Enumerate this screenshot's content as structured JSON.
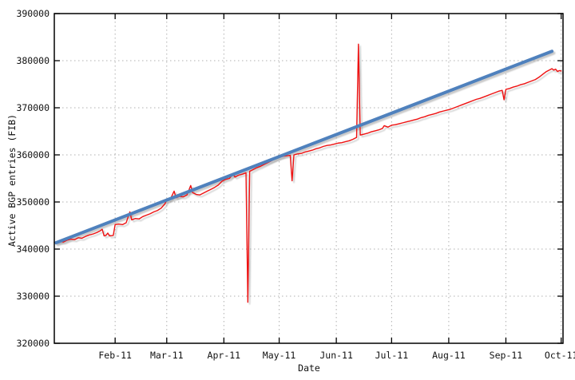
{
  "chart_data": {
    "type": "line",
    "title": "",
    "xlabel": "Date",
    "ylabel": "Active BGP entries (FIB)",
    "x_range": [
      "2010-12-30",
      "2011-10-02"
    ],
    "y_range": [
      320000,
      390000
    ],
    "y_ticks": [
      320000,
      330000,
      340000,
      350000,
      360000,
      370000,
      380000,
      390000
    ],
    "x_ticks": [
      {
        "date": "2011-02-01",
        "label": "Feb-11"
      },
      {
        "date": "2011-03-01",
        "label": "Mar-11"
      },
      {
        "date": "2011-04-01",
        "label": "Apr-11"
      },
      {
        "date": "2011-05-01",
        "label": "May-11"
      },
      {
        "date": "2011-06-01",
        "label": "Jun-11"
      },
      {
        "date": "2011-07-01",
        "label": "Jul-11"
      },
      {
        "date": "2011-08-01",
        "label": "Aug-11"
      },
      {
        "date": "2011-09-01",
        "label": "Sep-11"
      },
      {
        "date": "2011-10-01",
        "label": "Oct-11"
      }
    ],
    "grid": true,
    "legend": "none",
    "colors": {
      "fib": "#ee1111",
      "trend": "#4f81bd",
      "grid": "#b0b0b0",
      "border": "#000000",
      "text": "#111111",
      "shadow": "#8a8a8a"
    },
    "series": [
      {
        "name": "Active BGP entries (FIB)",
        "role": "measurement",
        "color_key": "fib",
        "width": 1.4,
        "points": [
          [
            "2010-12-30",
            341450
          ],
          [
            "2011-01-02",
            341600
          ],
          [
            "2011-01-04",
            341500
          ],
          [
            "2011-01-06",
            341900
          ],
          [
            "2011-01-08",
            342100
          ],
          [
            "2011-01-10",
            342000
          ],
          [
            "2011-01-12",
            342400
          ],
          [
            "2011-01-14",
            342300
          ],
          [
            "2011-01-16",
            342700
          ],
          [
            "2011-01-18",
            343000
          ],
          [
            "2011-01-20",
            343200
          ],
          [
            "2011-01-22",
            343500
          ],
          [
            "2011-01-24",
            343900
          ],
          [
            "2011-01-25",
            344200
          ],
          [
            "2011-01-26",
            342800
          ],
          [
            "2011-01-27",
            342900
          ],
          [
            "2011-01-28",
            343400
          ],
          [
            "2011-01-29",
            342800
          ],
          [
            "2011-01-31",
            342900
          ],
          [
            "2011-02-01",
            345200
          ],
          [
            "2011-02-03",
            345300
          ],
          [
            "2011-02-05",
            345200
          ],
          [
            "2011-02-07",
            345600
          ],
          [
            "2011-02-09",
            347900
          ],
          [
            "2011-02-10",
            346200
          ],
          [
            "2011-02-12",
            346500
          ],
          [
            "2011-02-14",
            346400
          ],
          [
            "2011-02-16",
            346900
          ],
          [
            "2011-02-18",
            347200
          ],
          [
            "2011-02-20",
            347500
          ],
          [
            "2011-02-22",
            347900
          ],
          [
            "2011-02-24",
            348200
          ],
          [
            "2011-02-26",
            348700
          ],
          [
            "2011-02-28",
            349600
          ],
          [
            "2011-03-01",
            350400
          ],
          [
            "2011-03-03",
            350600
          ],
          [
            "2011-03-05",
            352300
          ],
          [
            "2011-03-06",
            350900
          ],
          [
            "2011-03-08",
            351200
          ],
          [
            "2011-03-10",
            351100
          ],
          [
            "2011-03-12",
            351500
          ],
          [
            "2011-03-14",
            353500
          ],
          [
            "2011-03-15",
            352000
          ],
          [
            "2011-03-17",
            351600
          ],
          [
            "2011-03-19",
            351500
          ],
          [
            "2011-03-21",
            351900
          ],
          [
            "2011-03-23",
            352300
          ],
          [
            "2011-03-25",
            352700
          ],
          [
            "2011-03-27",
            353100
          ],
          [
            "2011-03-29",
            353600
          ],
          [
            "2011-03-31",
            354400
          ],
          [
            "2011-04-02",
            354800
          ],
          [
            "2011-04-04",
            355000
          ],
          [
            "2011-04-06",
            355900
          ],
          [
            "2011-04-07",
            355300
          ],
          [
            "2011-04-09",
            355700
          ],
          [
            "2011-04-11",
            355900
          ],
          [
            "2011-04-13",
            356200
          ],
          [
            "2011-04-14",
            328700
          ],
          [
            "2011-04-15",
            356500
          ],
          [
            "2011-04-17",
            356900
          ],
          [
            "2011-04-19",
            357300
          ],
          [
            "2011-04-21",
            357600
          ],
          [
            "2011-04-23",
            358000
          ],
          [
            "2011-04-25",
            358400
          ],
          [
            "2011-04-27",
            358800
          ],
          [
            "2011-04-29",
            359200
          ],
          [
            "2011-05-01",
            359500
          ],
          [
            "2011-05-03",
            359700
          ],
          [
            "2011-05-05",
            359800
          ],
          [
            "2011-05-07",
            359900
          ],
          [
            "2011-05-08",
            354500
          ],
          [
            "2011-05-09",
            360000
          ],
          [
            "2011-05-11",
            360200
          ],
          [
            "2011-05-13",
            360300
          ],
          [
            "2011-05-15",
            360600
          ],
          [
            "2011-05-17",
            360800
          ],
          [
            "2011-05-19",
            361000
          ],
          [
            "2011-05-21",
            361300
          ],
          [
            "2011-05-23",
            361500
          ],
          [
            "2011-05-25",
            361800
          ],
          [
            "2011-05-27",
            362000
          ],
          [
            "2011-05-29",
            362100
          ],
          [
            "2011-05-31",
            362300
          ],
          [
            "2011-06-02",
            362500
          ],
          [
            "2011-06-04",
            362600
          ],
          [
            "2011-06-06",
            362800
          ],
          [
            "2011-06-08",
            363000
          ],
          [
            "2011-06-10",
            363300
          ],
          [
            "2011-06-12",
            363700
          ],
          [
            "2011-06-13",
            383500
          ],
          [
            "2011-06-14",
            364200
          ],
          [
            "2011-06-16",
            364400
          ],
          [
            "2011-06-18",
            364600
          ],
          [
            "2011-06-20",
            364900
          ],
          [
            "2011-06-22",
            365100
          ],
          [
            "2011-06-24",
            365300
          ],
          [
            "2011-06-26",
            365600
          ],
          [
            "2011-06-27",
            366200
          ],
          [
            "2011-06-29",
            365900
          ],
          [
            "2011-07-01",
            366300
          ],
          [
            "2011-07-03",
            366400
          ],
          [
            "2011-07-05",
            366600
          ],
          [
            "2011-07-07",
            366800
          ],
          [
            "2011-07-09",
            367000
          ],
          [
            "2011-07-11",
            367200
          ],
          [
            "2011-07-13",
            367400
          ],
          [
            "2011-07-15",
            367600
          ],
          [
            "2011-07-17",
            367900
          ],
          [
            "2011-07-19",
            368100
          ],
          [
            "2011-07-21",
            368400
          ],
          [
            "2011-07-23",
            368600
          ],
          [
            "2011-07-25",
            368800
          ],
          [
            "2011-07-27",
            369100
          ],
          [
            "2011-07-29",
            369300
          ],
          [
            "2011-07-31",
            369500
          ],
          [
            "2011-08-02",
            369700
          ],
          [
            "2011-08-04",
            370000
          ],
          [
            "2011-08-06",
            370300
          ],
          [
            "2011-08-08",
            370600
          ],
          [
            "2011-08-10",
            370900
          ],
          [
            "2011-08-12",
            371200
          ],
          [
            "2011-08-14",
            371500
          ],
          [
            "2011-08-16",
            371800
          ],
          [
            "2011-08-18",
            372000
          ],
          [
            "2011-08-20",
            372300
          ],
          [
            "2011-08-22",
            372600
          ],
          [
            "2011-08-24",
            372900
          ],
          [
            "2011-08-26",
            373200
          ],
          [
            "2011-08-28",
            373500
          ],
          [
            "2011-08-30",
            373700
          ],
          [
            "2011-08-31",
            371700
          ],
          [
            "2011-09-01",
            373900
          ],
          [
            "2011-09-03",
            374100
          ],
          [
            "2011-09-05",
            374400
          ],
          [
            "2011-09-07",
            374600
          ],
          [
            "2011-09-09",
            374900
          ],
          [
            "2011-09-11",
            375100
          ],
          [
            "2011-09-13",
            375400
          ],
          [
            "2011-09-15",
            375700
          ],
          [
            "2011-09-17",
            376000
          ],
          [
            "2011-09-19",
            376500
          ],
          [
            "2011-09-21",
            377100
          ],
          [
            "2011-09-23",
            377700
          ],
          [
            "2011-09-25",
            378100
          ],
          [
            "2011-09-26",
            378300
          ],
          [
            "2011-09-27",
            378000
          ],
          [
            "2011-09-28",
            378200
          ],
          [
            "2011-09-29",
            377700
          ],
          [
            "2011-09-30",
            377900
          ],
          [
            "2011-10-01",
            377800
          ]
        ]
      },
      {
        "name": "trend-line",
        "role": "trend",
        "color_key": "trend",
        "width": 4,
        "points": [
          [
            "2010-12-31",
            341350
          ],
          [
            "2011-09-26",
            382000
          ]
        ]
      }
    ]
  }
}
